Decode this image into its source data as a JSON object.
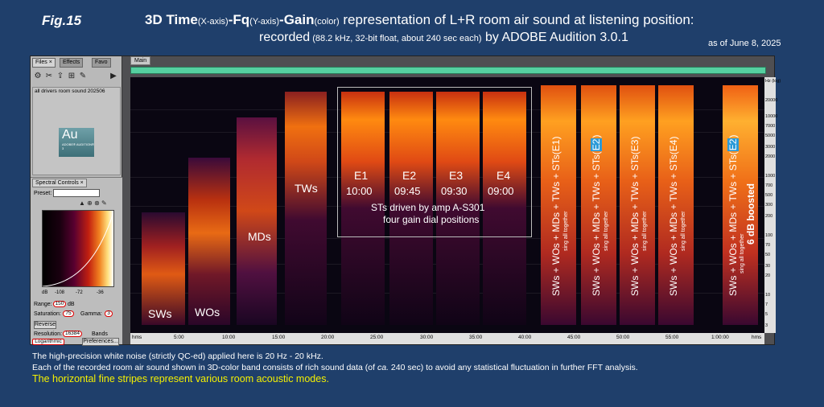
{
  "header": {
    "fig": "Fig.15",
    "title_parts": [
      "3D Time",
      "(X-axis)",
      "-Fq",
      "(Y-axis)",
      "-Gain",
      "(color)",
      " representation of L+R room air sound at listening position:"
    ],
    "subtitle_parts": [
      "recorded",
      " (88.2 kHz, 32-bit float, about 240 sec each)",
      " by ADOBE Audition 3.0.1"
    ],
    "as_of": "as of June 8, 2025"
  },
  "left_panel": {
    "tabs": [
      "Files",
      "Effects",
      "Favo"
    ],
    "file_name": "all drivers room sound 202506",
    "logo_text": "Au",
    "logo_sub": "ADOBE® AUDITION® 3",
    "spectral_tab": "Spectral Controls",
    "preset_label": "Preset:",
    "curve_axis": [
      "dB",
      "-108",
      "-72",
      "-36"
    ],
    "range_label": "Range:",
    "range_value": "150",
    "range_unit": "dB",
    "saturation_label": "Saturation:",
    "saturation_value": "75",
    "gamma_label": "Gamma:",
    "gamma_value": "3",
    "reverse_btn": "Reverse",
    "resolution_label": "Resolution:",
    "resolution_value": "16384",
    "bands_label": "Bands",
    "logarithmic_btn": "Logarithmic",
    "preferences_btn": "Preferences..."
  },
  "main": {
    "tab": "Main",
    "freq_axis": [
      "Hz (log)",
      "20000",
      "10000",
      "7000",
      "5000",
      "3000",
      "2000",
      "1000",
      "700",
      "500",
      "300",
      "200",
      "100",
      "70",
      "50",
      "30",
      "20",
      "10",
      "7",
      "5",
      "3"
    ],
    "time_axis": [
      "hms",
      "5:00",
      "10:00",
      "15:00",
      "20:00",
      "25:00",
      "30:00",
      "35:00",
      "40:00",
      "45:00",
      "50:00",
      "55:00",
      "1:00:00",
      "hms"
    ],
    "labels": {
      "sws": "SWs",
      "wos": "WOs",
      "mds": "MDs",
      "tws": "TWs",
      "e1": "E1",
      "e2": "E2",
      "e3": "E3",
      "e4": "E4",
      "t1": "10:00",
      "t2": "09:45",
      "t3": "09:30",
      "t4": "09:00",
      "sts_line1": "STs driven by amp A-S301",
      "sts_line2": "four gain dial positions"
    },
    "vertical": {
      "v_main_pre": "SWs + WOs + MDs + TWs + STs(",
      "v_close": ")",
      "e1": "E1",
      "e2": "E2",
      "e3": "E3",
      "e4": "E4",
      "sing": "sing all together",
      "sing_boost": "sing all together",
      "boost": "6 dB boosted"
    }
  },
  "footer": {
    "line1": "The high-precision white noise (strictly QC-ed) applied here is 20 Hz - 20 kHz.",
    "line2_pre": "Each of the recorded room air sound shown in 3D-color band consists of rich sound data (of ",
    "line2_ca": "ca.",
    "line2_post": " 240 sec) to avoid any statistical fluctuation in further FFT analysis.",
    "line3": "The horizontal fine stripes represent various room acoustic modes."
  },
  "colors": {
    "background": "#1f3f6b",
    "highlight_text": "#f4f000",
    "e2_badge": "#2a9ad8"
  }
}
